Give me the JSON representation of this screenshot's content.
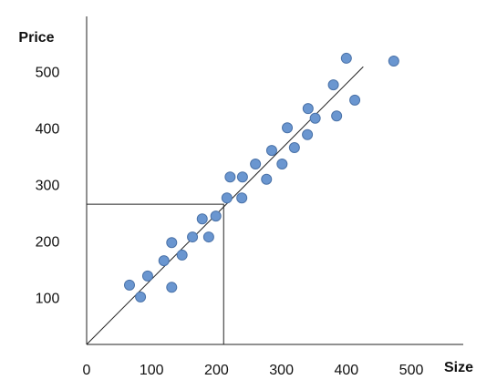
{
  "chart_data": {
    "type": "scatter",
    "y_label": "Price",
    "x_label": "Size",
    "xlim": [
      0,
      580
    ],
    "ylim": [
      20,
      600
    ],
    "xticks": [
      0,
      100,
      200,
      300,
      400,
      500
    ],
    "yticks": [
      100,
      200,
      300,
      400,
      500
    ],
    "color": "#6a96d0",
    "x": [
      66,
      83,
      94,
      119,
      131,
      131,
      147,
      163,
      178,
      188,
      199,
      216,
      221,
      239,
      240,
      260,
      277,
      285,
      301,
      309,
      320,
      340,
      341,
      352,
      380,
      385,
      400,
      413,
      473
    ],
    "values": [
      125,
      104,
      141,
      168,
      200,
      121,
      178,
      210,
      242,
      210,
      247,
      279,
      316,
      279,
      316,
      339,
      312,
      363,
      339,
      403,
      368,
      391,
      437,
      420,
      479,
      424,
      526,
      452,
      521
    ],
    "trend_line": {
      "x": [
        0,
        426
      ],
      "values": [
        20,
        511
      ]
    },
    "guide": {
      "x": 211,
      "y": 268
    }
  }
}
